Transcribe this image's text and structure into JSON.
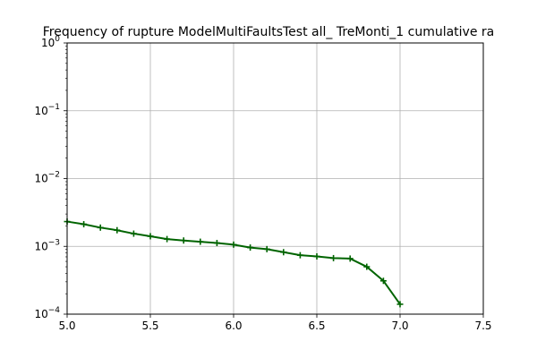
{
  "chart_data": {
    "type": "line",
    "title": "Frequency of rupture ModelMultiFaultsTest all_ TreMonti_1 cumulative ra",
    "xlabel": "",
    "ylabel": "",
    "xlim": [
      5.0,
      7.5
    ],
    "ylim": [
      0.0001,
      1
    ],
    "yscale": "log",
    "grid": true,
    "x_ticks": [
      {
        "value": 5.0,
        "label": "5.0"
      },
      {
        "value": 5.5,
        "label": "5.5"
      },
      {
        "value": 6.0,
        "label": "6.0"
      },
      {
        "value": 6.5,
        "label": "6.5"
      },
      {
        "value": 7.0,
        "label": "7.0"
      },
      {
        "value": 7.5,
        "label": "7.5"
      }
    ],
    "y_ticks": [
      {
        "value": 0.0001,
        "base": "10",
        "exp": "−4"
      },
      {
        "value": 0.001,
        "base": "10",
        "exp": "−3"
      },
      {
        "value": 0.01,
        "base": "10",
        "exp": "−2"
      },
      {
        "value": 0.1,
        "base": "10",
        "exp": "−1"
      },
      {
        "value": 1,
        "base": "10",
        "exp": "0"
      }
    ],
    "series": [
      {
        "color": "#006400",
        "x": [
          5.0,
          5.1,
          5.2,
          5.3,
          5.4,
          5.5,
          5.6,
          5.7,
          5.8,
          5.9,
          6.0,
          6.1,
          6.2,
          6.3,
          6.4,
          6.5,
          6.6,
          6.7,
          6.8,
          6.9,
          7.0
        ],
        "y": [
          0.00232,
          0.00212,
          0.00189,
          0.00173,
          0.00154,
          0.00141,
          0.00128,
          0.00122,
          0.00117,
          0.00112,
          0.00106,
          0.00096,
          0.00091,
          0.00082,
          0.00074,
          0.00071,
          0.00067,
          0.00066,
          0.0005,
          0.00031,
          0.00014
        ]
      }
    ]
  }
}
